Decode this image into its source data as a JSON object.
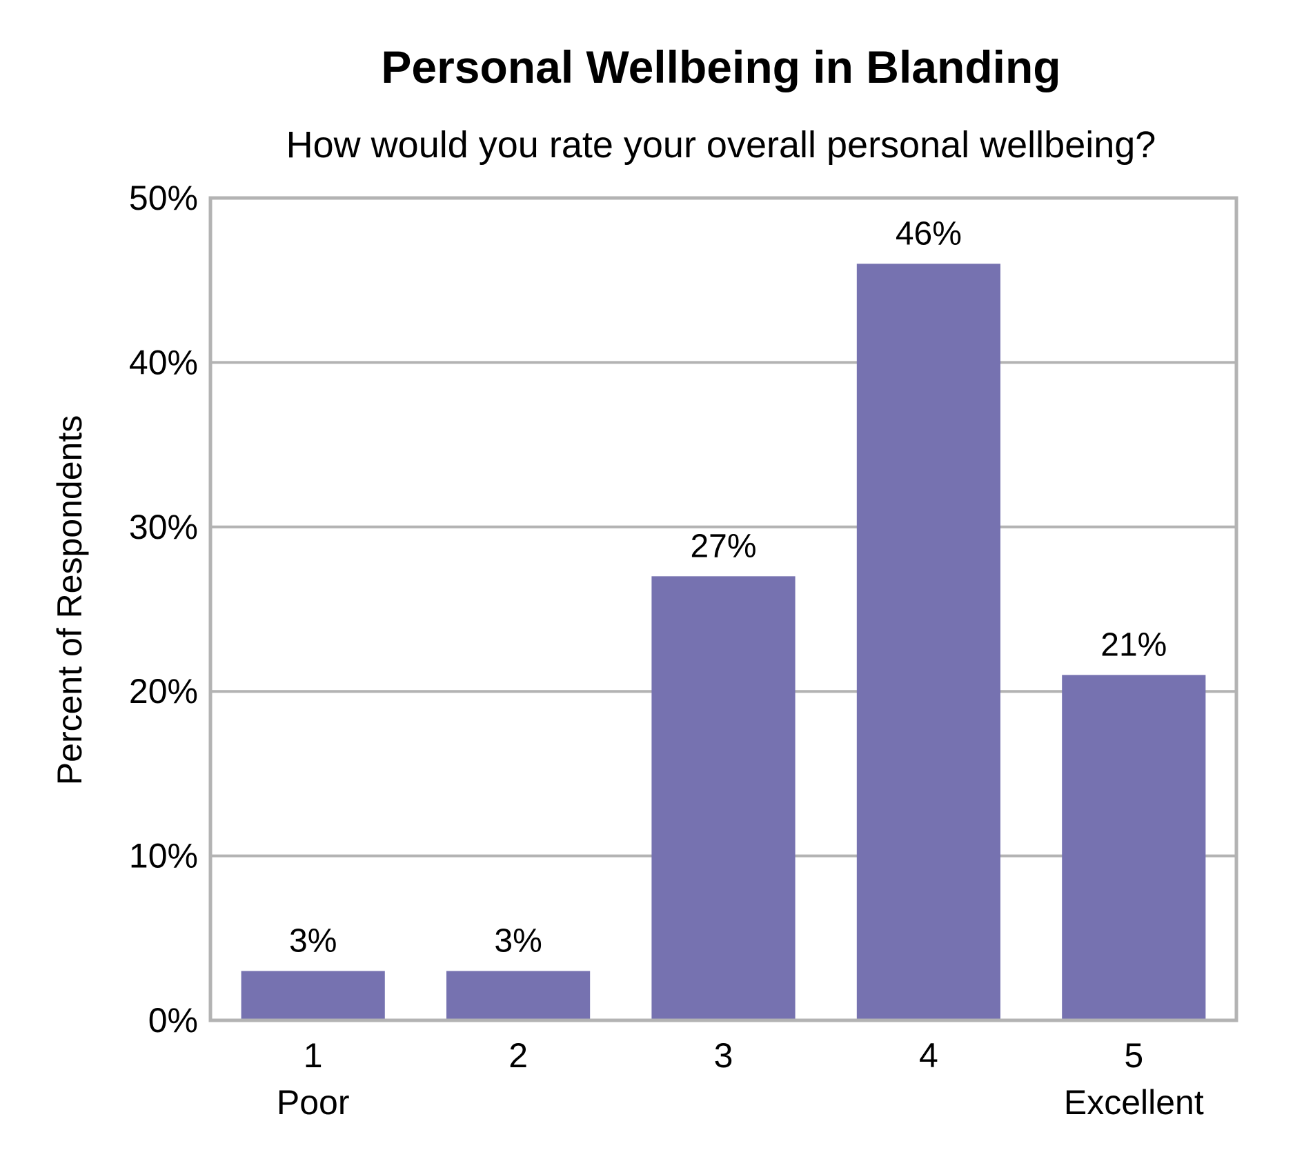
{
  "chart_data": {
    "type": "bar",
    "title": "Personal Wellbeing in Blanding",
    "subtitle": "How would you rate your overall personal wellbeing?",
    "ylabel": "Percent of Respondents",
    "xlabel": "",
    "categories": [
      "1",
      "2",
      "3",
      "4",
      "5"
    ],
    "category_sublabels": [
      "Poor",
      "",
      "",
      "",
      "Excellent"
    ],
    "values": [
      3,
      3,
      27,
      46,
      21
    ],
    "value_labels": [
      "3%",
      "3%",
      "27%",
      "46%",
      "21%"
    ],
    "ylim": [
      0,
      50
    ],
    "yticks": [
      0,
      10,
      20,
      30,
      40,
      50
    ],
    "ytick_labels": [
      "0%",
      "10%",
      "20%",
      "30%",
      "40%",
      "50%"
    ],
    "grid": true,
    "legend": "none",
    "bar_color": "#7672b0",
    "grid_color": "#b3b3b3"
  }
}
